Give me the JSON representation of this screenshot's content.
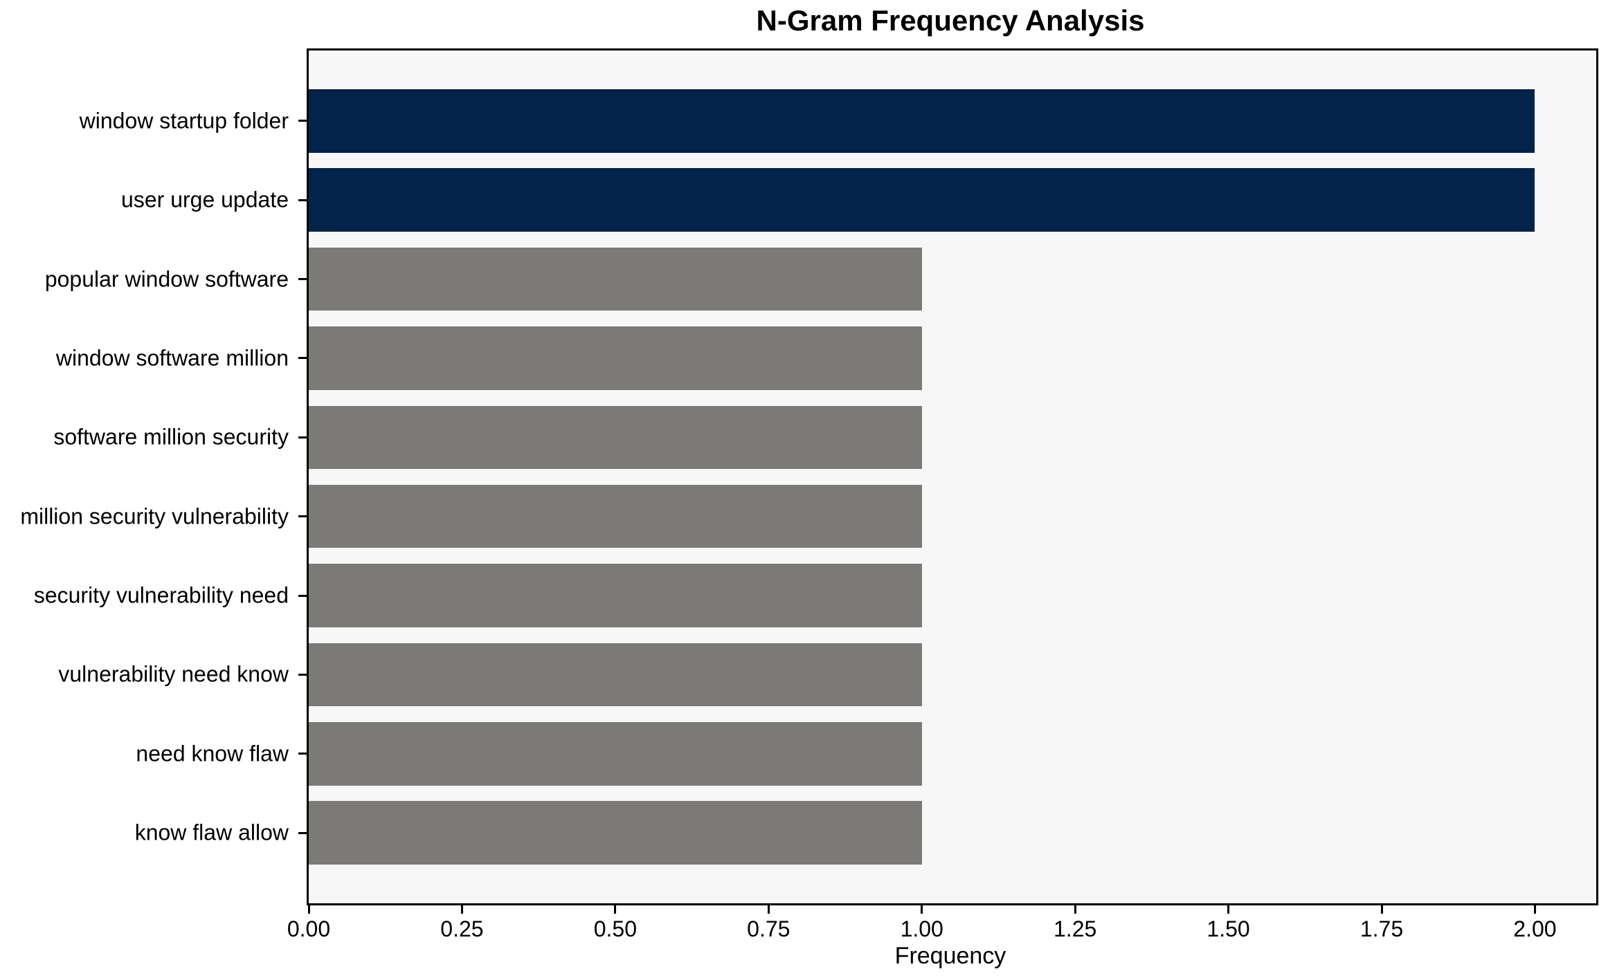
{
  "chart_data": {
    "type": "bar",
    "orientation": "horizontal",
    "title": "N-Gram Frequency Analysis",
    "xlabel": "Frequency",
    "ylabel": "",
    "categories": [
      "window startup folder",
      "user urge update",
      "popular window software",
      "window software million",
      "software million security",
      "million security vulnerability",
      "security vulnerability need",
      "vulnerability need know",
      "need know flaw",
      "know flaw allow"
    ],
    "values": [
      2,
      2,
      1,
      1,
      1,
      1,
      1,
      1,
      1,
      1
    ],
    "bar_colors": [
      "#032349",
      "#032349",
      "#7b7a77",
      "#7b7a77",
      "#7b7a77",
      "#7b7a77",
      "#7b7a77",
      "#7b7a77",
      "#7b7a77",
      "#7b7a77"
    ],
    "highlight_color": "#032349",
    "default_color": "#7b7a77",
    "plot_background": "#f7f7f7",
    "spine_color": "#000000",
    "xlim": [
      0,
      2.1
    ],
    "xticks": [
      0,
      0.25,
      0.5,
      0.75,
      1.0,
      1.25,
      1.5,
      1.75,
      2.0
    ],
    "xtick_labels": [
      "0.00",
      "0.25",
      "0.50",
      "0.75",
      "1.00",
      "1.25",
      "1.50",
      "1.75",
      "2.00"
    ],
    "grid": false,
    "legend": null
  }
}
